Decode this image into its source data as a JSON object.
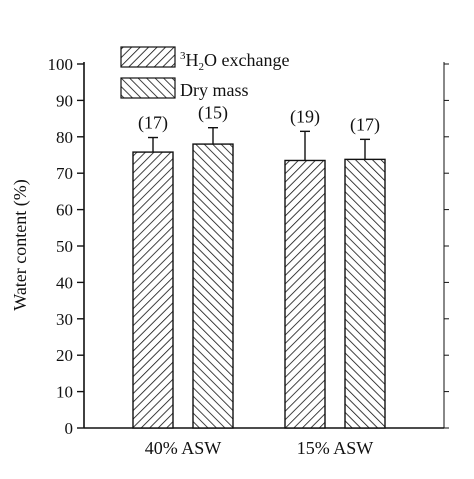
{
  "chart_data": {
    "type": "bar",
    "ylabel": "Water content (%)",
    "ylim": [
      0,
      100
    ],
    "yticks": [
      0,
      10,
      20,
      30,
      40,
      50,
      60,
      70,
      80,
      90,
      100
    ],
    "categories": [
      "40% ASW",
      "15% ASW"
    ],
    "legend_position": "top-left",
    "series": [
      {
        "name_parts": {
          "pre": "3",
          "mid": "H",
          "sub": "2",
          "post": "O exchange"
        },
        "pattern": "forward-hatch",
        "values": [
          75.8,
          73.5
        ],
        "errors": [
          4.0,
          8.0
        ],
        "n_labels": [
          "(17)",
          "(19)"
        ]
      },
      {
        "name": "Dry mass",
        "pattern": "back-hatch",
        "values": [
          78.0,
          73.8
        ],
        "errors": [
          4.5,
          5.5
        ],
        "n_labels": [
          "(15)",
          "(17)"
        ]
      }
    ],
    "colors": {
      "ink": "#111111",
      "fill": "#ffffff"
    }
  }
}
